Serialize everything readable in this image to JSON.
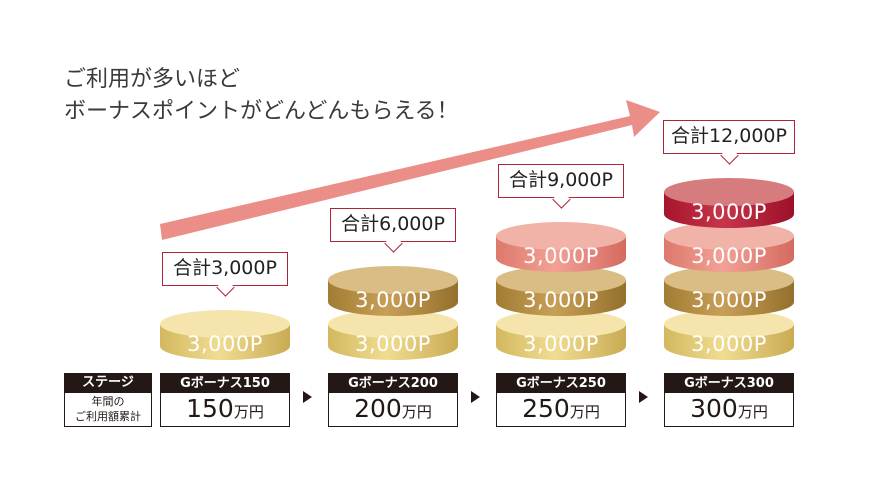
{
  "headline": {
    "line1": "ご利用が多いほど",
    "line2": "ボーナスポイントがどんどんもらえる！"
  },
  "colors": {
    "arrow": "#ec8e88",
    "callout_border": "#b0243a",
    "coin_gold": "#e6cf7c",
    "coin_bronze": "#b58e47",
    "coin_pink": "#ec8e84",
    "coin_crimson": "#b5243a",
    "stage_dark": "#231815"
  },
  "coin_label": "3,000P",
  "stage_header": {
    "title": "ステージ",
    "subtitle_line1": "年間の",
    "subtitle_line2": "ご利用額累計"
  },
  "stages": [
    {
      "total": "合計3,000P",
      "name": "Gボーナス150",
      "amount": "150",
      "unit": "万円",
      "coins": [
        "gold"
      ]
    },
    {
      "total": "合計6,000P",
      "name": "Gボーナス200",
      "amount": "200",
      "unit": "万円",
      "coins": [
        "gold",
        "bronze"
      ]
    },
    {
      "total": "合計9,000P",
      "name": "Gボーナス250",
      "amount": "250",
      "unit": "万円",
      "coins": [
        "gold",
        "bronze",
        "pink"
      ]
    },
    {
      "total": "合計12,000P",
      "name": "Gボーナス300",
      "amount": "300",
      "unit": "万円",
      "coins": [
        "gold",
        "bronze",
        "pink",
        "crimson"
      ]
    }
  ]
}
